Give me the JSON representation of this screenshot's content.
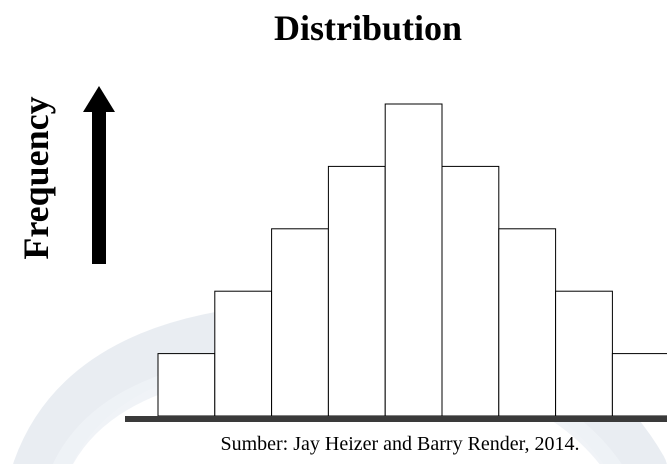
{
  "chart_data": {
    "type": "bar",
    "title": "Distribution",
    "ylabel": "Frequency",
    "xlabel": "",
    "categories": [
      "",
      "",
      "",
      "",
      "",
      "",
      "",
      "",
      ""
    ],
    "values": [
      1,
      2,
      3,
      4,
      5,
      4,
      3,
      2,
      1
    ],
    "ylim": [
      0,
      5
    ],
    "grid": false,
    "legend": "none",
    "colors": {
      "bar_fill": "#ffffff",
      "bar_stroke": "#000000",
      "axis": "#3a3a3a",
      "watermark": "#dfe6ee"
    }
  },
  "source": "Sumber: Jay Heizer and Barry Render, 2014."
}
